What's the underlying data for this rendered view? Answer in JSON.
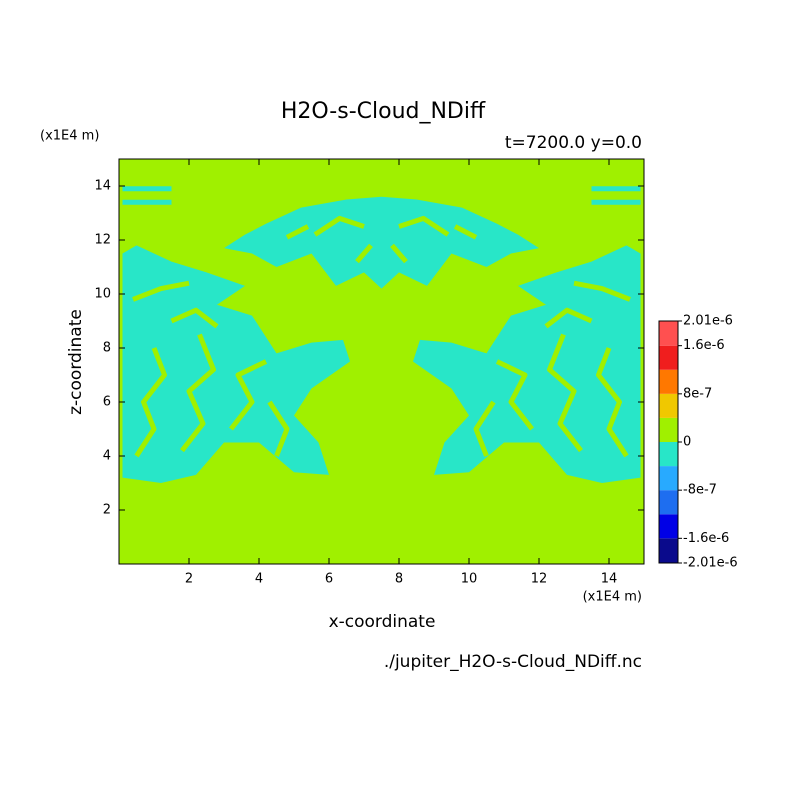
{
  "chart_data": {
    "type": "contour",
    "title": "H2O-s-Cloud_NDiff",
    "subtitle": "t=7200.0 y=0.0",
    "xlabel": "x-coordinate",
    "ylabel": "z-coordinate",
    "x_unit": "(x1E4 m)",
    "y_unit": "(x1E4 m)",
    "source": "./jupiter_H2O-s-Cloud_NDiff.nc",
    "xlim": [
      0,
      15
    ],
    "ylim": [
      0,
      15
    ],
    "xticks": [
      2,
      4,
      6,
      8,
      10,
      12,
      14
    ],
    "yticks": [
      2,
      4,
      6,
      8,
      10,
      12,
      14
    ],
    "levels": [
      -2.01e-06,
      -1.6e-06,
      -1.2e-06,
      -8e-07,
      -4e-07,
      0,
      4e-07,
      8e-07,
      1.2e-06,
      1.6e-06,
      2.01e-06
    ],
    "colors": [
      "#0a0a8c",
      "#0000e6",
      "#1e6ef0",
      "#28aaff",
      "#28e6c8",
      "#a0f000",
      "#f0c800",
      "#ff7800",
      "#f01e1e",
      "#ff5050"
    ],
    "colorbar_ticks": [
      {
        "value": 2.01e-06,
        "label": "2.01e-6"
      },
      {
        "value": 1.6e-06,
        "label": "1.6e-6"
      },
      {
        "value": 8e-07,
        "label": "8e-7"
      },
      0,
      {
        "value": -8e-07,
        "label": "-8e-7"
      },
      {
        "value": -1.6e-06,
        "label": "-1.6e-6"
      },
      {
        "value": -2.01e-06,
        "label": "-2.01e-6"
      }
    ]
  }
}
